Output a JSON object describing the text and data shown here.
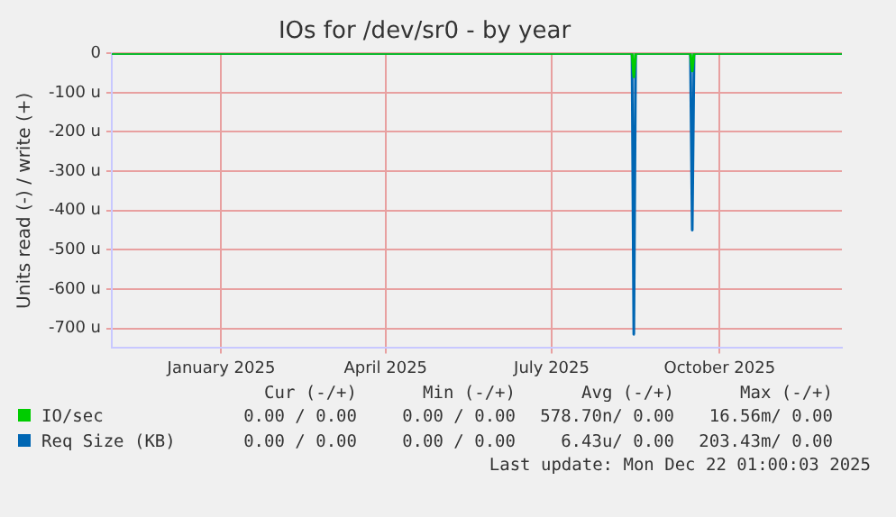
{
  "chart_data": {
    "type": "line",
    "title": "IOs for /dev/sr0 - by year",
    "ylabel": "Units read (-) / write (+)",
    "x": [
      "2024-11-17",
      "2025-08-29",
      "2025-08-30",
      "2025-08-31",
      "2025-09-30",
      "2025-10-01",
      "2025-10-02",
      "2025-12-22"
    ],
    "series": [
      {
        "name": "Req Size (KB)",
        "color": "#0066b3",
        "values": [
          0,
          0,
          -715,
          0,
          0,
          -450,
          0,
          0
        ]
      },
      {
        "name": "IO/sec",
        "color": "#00cc00",
        "values": [
          0,
          0,
          -60,
          0,
          0,
          -45,
          0,
          0
        ]
      }
    ],
    "xlim": [
      "2024-11-17",
      "2025-12-22"
    ],
    "xticks": [
      {
        "value": "2025-01-16",
        "label": "January 2025"
      },
      {
        "value": "2025-04-16",
        "label": "April 2025"
      },
      {
        "value": "2025-07-16",
        "label": "July 2025"
      },
      {
        "value": "2025-10-16",
        "label": "October 2025"
      }
    ],
    "ylim": [
      -750,
      0
    ],
    "yticks": [
      {
        "value": -700,
        "label": "-700 u"
      },
      {
        "value": -600,
        "label": "-600 u"
      },
      {
        "value": -500,
        "label": "-500 u"
      },
      {
        "value": -400,
        "label": "-400 u"
      },
      {
        "value": -300,
        "label": "-300 u"
      },
      {
        "value": -200,
        "label": "-200 u"
      },
      {
        "value": -100,
        "label": "-100 u"
      },
      0
    ],
    "grid": true,
    "legend": "bottom",
    "marker": "none",
    "line_style": "solid",
    "annotations": [
      "Cur (-/+)",
      "Min (-/+)",
      "Avg (-/+)",
      "Max (-/+)",
      "0.00 / 0.00",
      "0.00 / 0.00",
      "578.70n/ 0.00",
      "16.56m/ 0.00",
      "0.00 / 0.00",
      "0.00 / 0.00",
      "6.43u/ 0.00",
      "203.43m/ 0.00",
      "Last update: Mon Dec 22 01:00:03 2025"
    ]
  }
}
